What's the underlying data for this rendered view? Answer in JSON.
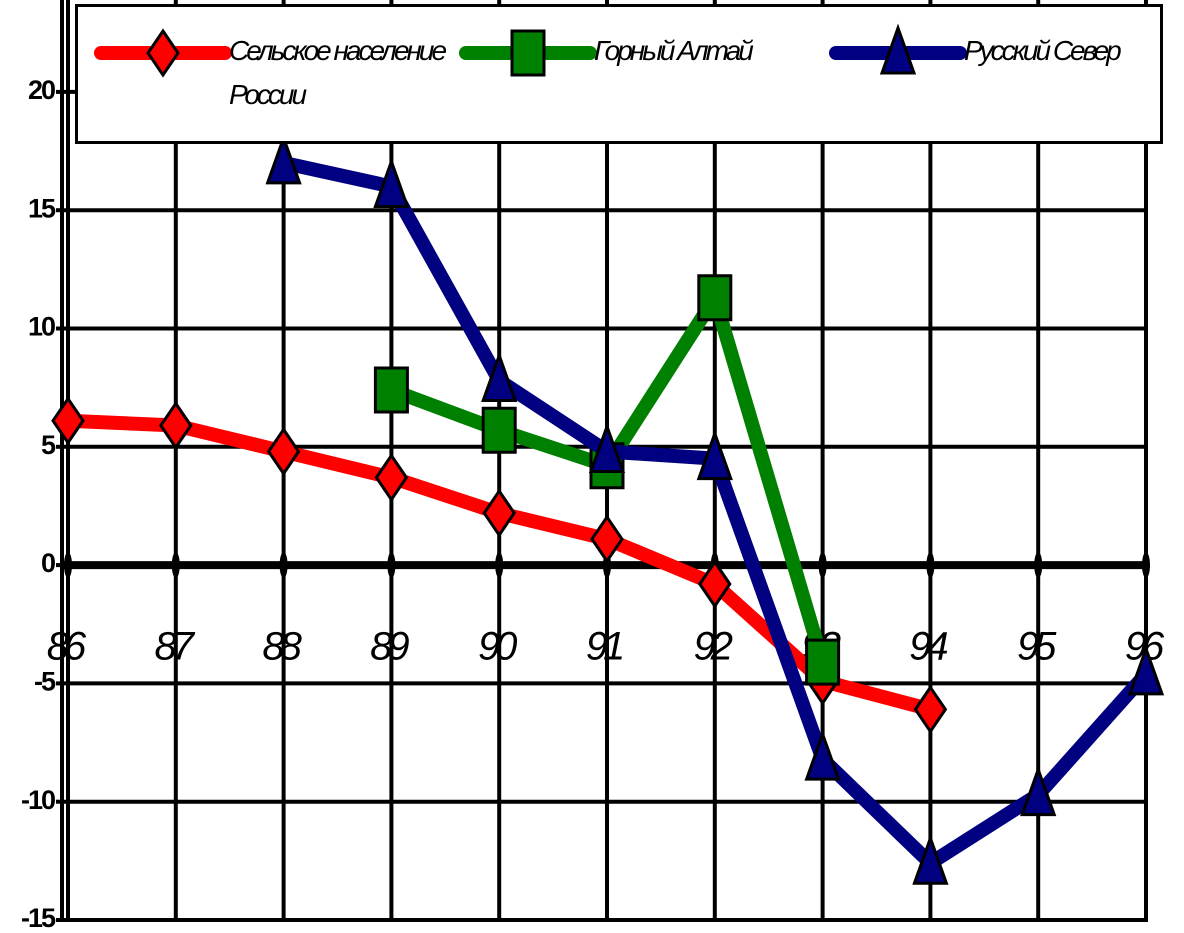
{
  "chart_data": {
    "type": "line",
    "categories": [
      "86",
      "87",
      "88",
      "89",
      "90",
      "91",
      "92",
      "93",
      "94",
      "95",
      "96"
    ],
    "series": [
      {
        "name": "Сельское население России",
        "color": "#ff0000",
        "marker": "diamond",
        "values": [
          6.1,
          5.9,
          4.8,
          3.7,
          2.2,
          1.1,
          -0.8,
          -4.9,
          -6.1,
          null,
          null
        ]
      },
      {
        "name": "Горный Алтай",
        "color": "#008000",
        "marker": "square",
        "values": [
          null,
          null,
          null,
          7.4,
          5.7,
          4.2,
          11.3,
          -4.1,
          null,
          null,
          null
        ]
      },
      {
        "name": "Русский Север",
        "color": "#000080",
        "marker": "triangle",
        "values": [
          null,
          null,
          17,
          16,
          7.8,
          4.8,
          4.5,
          -8.2,
          -12.6,
          -9.7,
          -4.6
        ]
      }
    ],
    "ylim": [
      -15,
      24
    ],
    "yticks": [
      -15,
      -10,
      -5,
      0,
      5,
      10,
      15,
      20
    ],
    "grid": true
  }
}
